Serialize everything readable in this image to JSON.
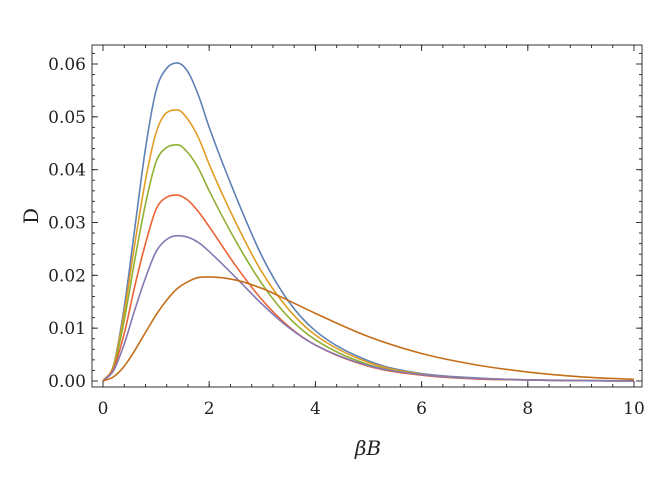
{
  "chart_data": {
    "type": "line",
    "xlabel": "βB",
    "ylabel": "D",
    "xlim": [
      0,
      10
    ],
    "ylim": [
      0,
      0.063
    ],
    "x_ticks": [
      0,
      2,
      4,
      6,
      8,
      10
    ],
    "x_tick_labels": [
      "0",
      "2",
      "4",
      "6",
      "8",
      "10"
    ],
    "y_ticks": [
      0,
      0.01,
      0.02,
      0.03,
      0.04,
      0.05,
      0.06
    ],
    "y_tick_labels": [
      "0.00",
      "0.01",
      "0.02",
      "0.03",
      "0.04",
      "0.05",
      "0.06"
    ],
    "grid": false,
    "frame": true,
    "series": [
      {
        "color": "#5E81B5",
        "x": [
          0,
          0.2,
          0.4,
          0.6,
          0.8,
          1.0,
          1.2,
          1.4,
          1.6,
          1.8,
          2.0,
          2.5,
          3.0,
          3.5,
          4.0,
          5.0,
          6.0,
          7.0,
          8.0,
          10.0
        ],
        "values": [
          0,
          0.003,
          0.014,
          0.029,
          0.044,
          0.055,
          0.0592,
          0.0602,
          0.0585,
          0.054,
          0.048,
          0.035,
          0.0235,
          0.015,
          0.0095,
          0.0038,
          0.0014,
          0.0006,
          0.0002,
          0.0
        ]
      },
      {
        "color": "#E19C24",
        "x": [
          0,
          0.2,
          0.4,
          0.6,
          0.8,
          1.0,
          1.2,
          1.4,
          1.6,
          1.8,
          2.0,
          2.5,
          3.0,
          3.5,
          4.0,
          5.0,
          6.0,
          7.0,
          8.0,
          10.0
        ],
        "values": [
          0,
          0.003,
          0.013,
          0.026,
          0.038,
          0.047,
          0.0508,
          0.0513,
          0.0495,
          0.046,
          0.041,
          0.03,
          0.0205,
          0.0135,
          0.0087,
          0.0035,
          0.0013,
          0.0005,
          0.0002,
          0.0
        ]
      },
      {
        "color": "#8FB032",
        "x": [
          0,
          0.2,
          0.4,
          0.6,
          0.8,
          1.0,
          1.2,
          1.4,
          1.6,
          1.8,
          2.0,
          2.5,
          3.0,
          3.5,
          4.0,
          5.0,
          6.0,
          7.0,
          8.0,
          10.0
        ],
        "values": [
          0,
          0.0027,
          0.0115,
          0.023,
          0.0335,
          0.0415,
          0.0442,
          0.0447,
          0.0432,
          0.0402,
          0.036,
          0.0265,
          0.0183,
          0.012,
          0.0078,
          0.0031,
          0.0012,
          0.0005,
          0.0002,
          0.0
        ]
      },
      {
        "color": "#EB6235",
        "x": [
          0,
          0.2,
          0.4,
          0.6,
          0.8,
          1.0,
          1.2,
          1.4,
          1.6,
          1.8,
          2.0,
          2.5,
          3.0,
          3.5,
          4.0,
          5.0,
          6.0,
          7.0,
          8.0,
          10.0
        ],
        "values": [
          0,
          0.0024,
          0.009,
          0.018,
          0.026,
          0.0325,
          0.0348,
          0.0352,
          0.0342,
          0.032,
          0.0292,
          0.0218,
          0.0153,
          0.0103,
          0.0068,
          0.0028,
          0.0011,
          0.0004,
          0.0002,
          0.0
        ]
      },
      {
        "color": "#8778B3",
        "x": [
          0,
          0.2,
          0.4,
          0.6,
          0.8,
          1.0,
          1.2,
          1.4,
          1.6,
          1.8,
          2.0,
          2.5,
          3.0,
          3.5,
          4.0,
          5.0,
          6.0,
          7.0,
          8.0,
          10.0
        ],
        "values": [
          0,
          0.002,
          0.007,
          0.0135,
          0.0195,
          0.0245,
          0.0268,
          0.0275,
          0.0272,
          0.0262,
          0.0245,
          0.0196,
          0.0145,
          0.0101,
          0.0068,
          0.0029,
          0.0012,
          0.0005,
          0.0002,
          0.0
        ]
      },
      {
        "color": "#C56E1A",
        "x": [
          0,
          0.2,
          0.4,
          0.6,
          0.8,
          1.0,
          1.2,
          1.4,
          1.6,
          1.8,
          2.0,
          2.5,
          3.0,
          3.5,
          4.0,
          5.0,
          6.0,
          7.0,
          8.0,
          9.0,
          10.0
        ],
        "values": [
          0,
          0.0008,
          0.0028,
          0.0058,
          0.0092,
          0.0125,
          0.0153,
          0.0175,
          0.0188,
          0.0196,
          0.0197,
          0.0191,
          0.0175,
          0.0152,
          0.0128,
          0.0084,
          0.0052,
          0.0031,
          0.0017,
          0.0008,
          0.0003
        ]
      }
    ]
  }
}
